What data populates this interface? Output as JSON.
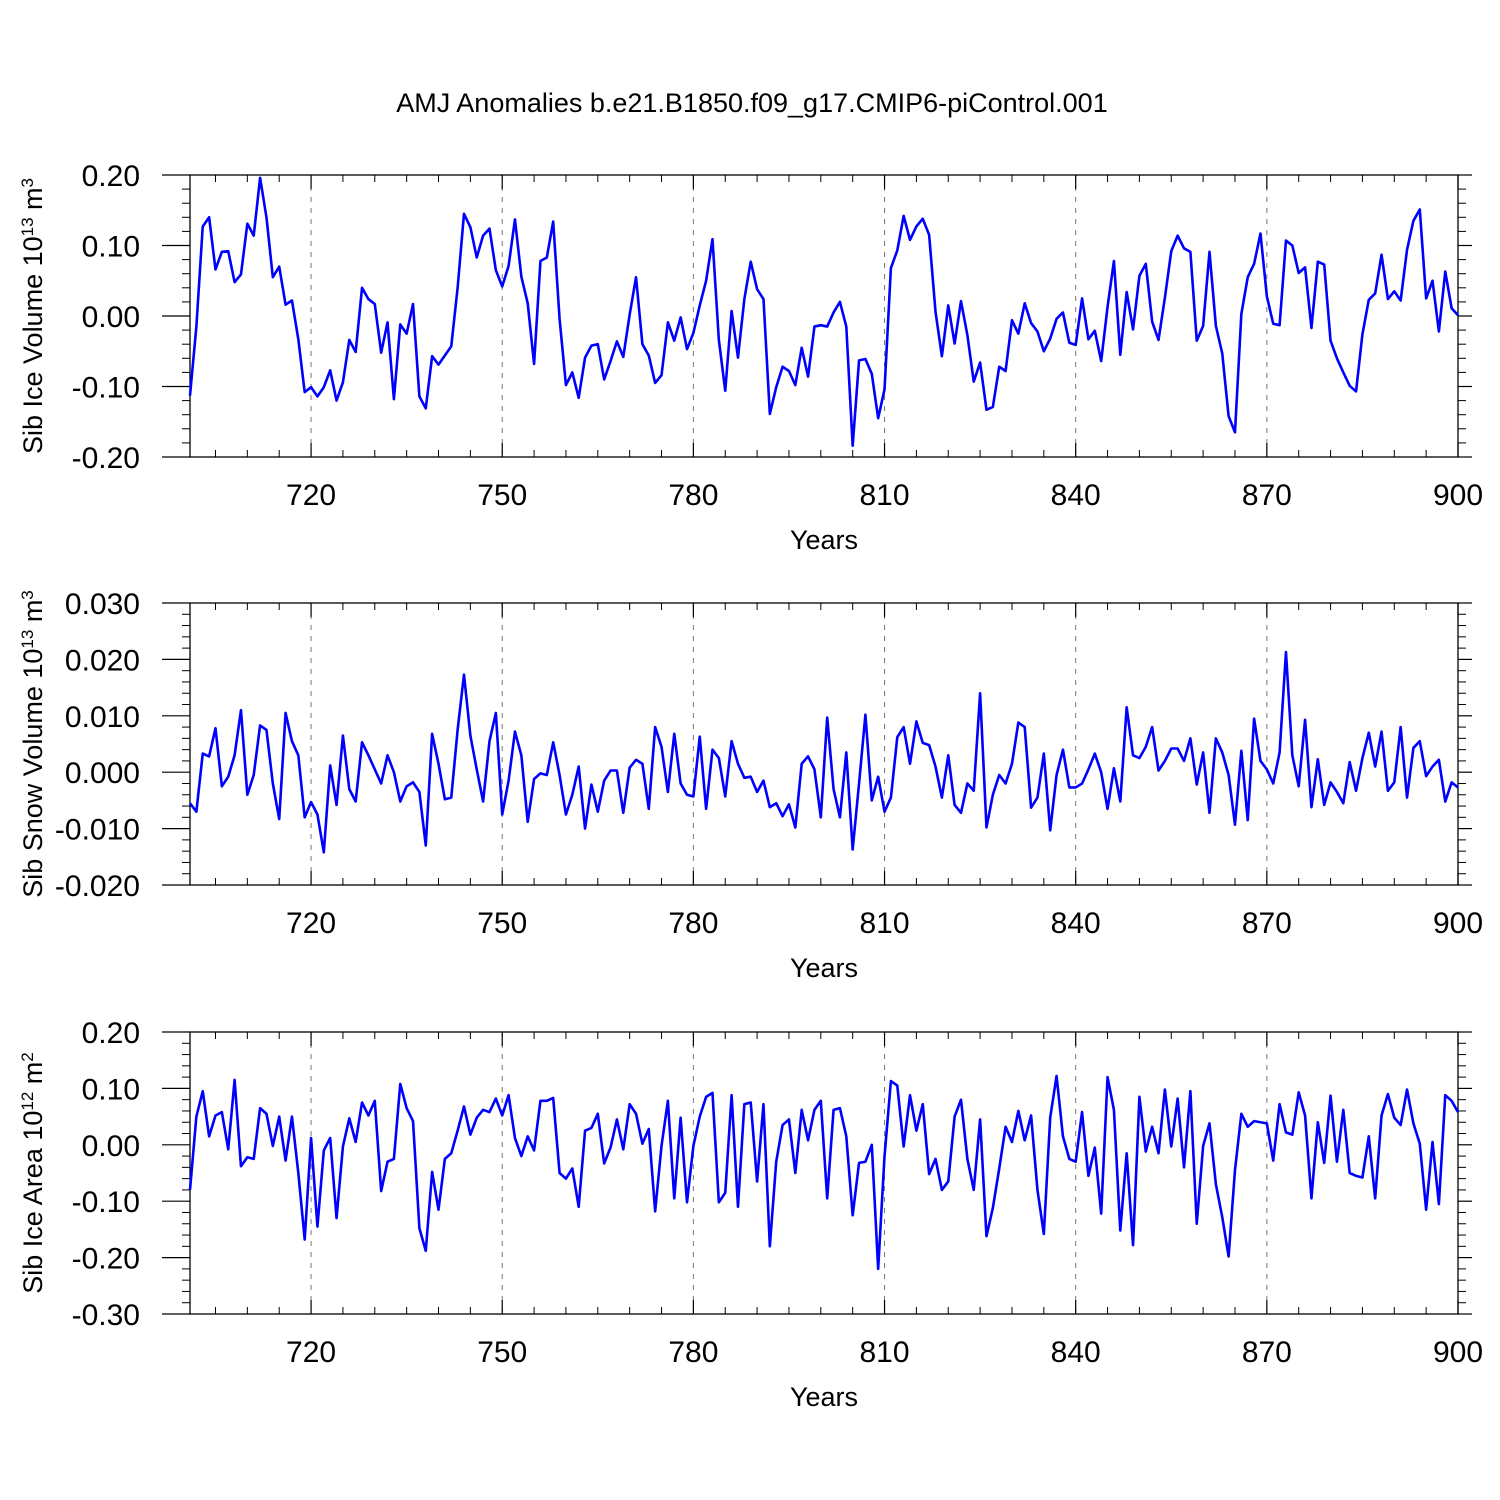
{
  "title": "AMJ Anomalies b.e21.B1850.f09_g17.CMIP6-piControl.001",
  "line_color": "#0000ff",
  "chart_data": [
    {
      "type": "line",
      "ylabel_main": "Sib Ice Volume 10",
      "ylabel_exp": "13",
      "ylabel_unit": " m",
      "ylabel_unit_exp": "3",
      "xlabel": "Years",
      "xlim": [
        701,
        900
      ],
      "ylim": [
        -0.2,
        0.2
      ],
      "x_ticks": [
        "720",
        "750",
        "780",
        "810",
        "840",
        "870",
        "900"
      ],
      "y_ticks": [
        "-0.20",
        "-0.10",
        "0.00",
        "0.10",
        "0.20"
      ],
      "x_start": 701,
      "values": [
        -0.113,
        -0.015,
        0.127,
        0.14,
        0.066,
        0.091,
        0.092,
        0.048,
        0.059,
        0.131,
        0.114,
        0.196,
        0.14,
        0.055,
        0.07,
        0.016,
        0.022,
        -0.033,
        -0.108,
        -0.101,
        -0.114,
        -0.101,
        -0.077,
        -0.12,
        -0.094,
        -0.034,
        -0.051,
        0.04,
        0.024,
        0.017,
        -0.052,
        -0.009,
        -0.118,
        -0.012,
        -0.025,
        0.017,
        -0.114,
        -0.131,
        -0.057,
        -0.069,
        -0.056,
        -0.043,
        0.04,
        0.145,
        0.126,
        0.083,
        0.114,
        0.124,
        0.065,
        0.042,
        0.071,
        0.137,
        0.056,
        0.018,
        -0.068,
        0.078,
        0.083,
        0.134,
        -0.004,
        -0.098,
        -0.08,
        -0.116,
        -0.059,
        -0.042,
        -0.04,
        -0.09,
        -0.064,
        -0.036,
        -0.058,
        0.002,
        0.055,
        -0.04,
        -0.056,
        -0.095,
        -0.084,
        -0.009,
        -0.035,
        -0.002,
        -0.047,
        -0.024,
        0.015,
        0.05,
        0.109,
        -0.034,
        -0.106,
        0.007,
        -0.059,
        0.024,
        0.077,
        0.038,
        0.024,
        -0.139,
        -0.101,
        -0.072,
        -0.078,
        -0.098,
        -0.045,
        -0.086,
        -0.015,
        -0.013,
        -0.015,
        0.005,
        0.02,
        -0.015,
        -0.184,
        -0.063,
        -0.061,
        -0.082,
        -0.145,
        -0.104,
        0.068,
        0.093,
        0.142,
        0.108,
        0.127,
        0.138,
        0.115,
        0.006,
        -0.057,
        0.015,
        -0.039,
        0.021,
        -0.027,
        -0.093,
        -0.066,
        -0.133,
        -0.129,
        -0.072,
        -0.078,
        -0.006,
        -0.025,
        0.018,
        -0.01,
        -0.022,
        -0.05,
        -0.032,
        -0.004,
        0.005,
        -0.038,
        -0.041,
        0.025,
        -0.033,
        -0.021,
        -0.064,
        0.013,
        0.078,
        -0.055,
        0.034,
        -0.019,
        0.057,
        0.074,
        -0.008,
        -0.034,
        0.026,
        0.092,
        0.114,
        0.096,
        0.091,
        -0.035,
        -0.014,
        0.091,
        -0.014,
        -0.053,
        -0.142,
        -0.165,
        0.003,
        0.055,
        0.074,
        0.117,
        0.028,
        -0.011,
        -0.013,
        0.107,
        0.1,
        0.061,
        0.069,
        -0.017,
        0.077,
        0.073,
        -0.035,
        -0.06,
        -0.08,
        -0.099,
        -0.107,
        -0.026,
        0.023,
        0.032,
        0.087,
        0.024,
        0.035,
        0.022,
        0.094,
        0.135,
        0.151,
        0.025,
        0.05,
        -0.022,
        0.063,
        0.011,
        0.001
      ]
    },
    {
      "type": "line",
      "ylabel_main": "Sib Snow Volume 10",
      "ylabel_exp": "13",
      "ylabel_unit": " m",
      "ylabel_unit_exp": "3",
      "xlabel": "Years",
      "xlim": [
        701,
        900
      ],
      "ylim": [
        -0.02,
        0.03
      ],
      "x_ticks": [
        "720",
        "750",
        "780",
        "810",
        "840",
        "870",
        "900"
      ],
      "y_ticks": [
        "-0.020",
        "-0.010",
        "0.000",
        "0.010",
        "0.020",
        "0.030"
      ],
      "x_start": 701,
      "values": [
        -0.0055,
        -0.007,
        0.0033,
        0.0028,
        0.0078,
        -0.0025,
        -0.0008,
        0.003,
        0.011,
        -0.004,
        -0.0005,
        0.0083,
        0.0075,
        -0.002,
        -0.0083,
        0.0105,
        0.0055,
        0.003,
        -0.008,
        -0.0053,
        -0.0075,
        -0.0142,
        0.0012,
        -0.0058,
        0.0065,
        -0.003,
        -0.0052,
        0.0053,
        0.003,
        0.0005,
        -0.002,
        0.003,
        0.0,
        -0.0052,
        -0.0025,
        -0.0018,
        -0.0035,
        -0.013,
        0.0068,
        0.0015,
        -0.0048,
        -0.0045,
        0.0075,
        0.0173,
        0.0065,
        0.0005,
        -0.0052,
        0.0055,
        0.0105,
        -0.0075,
        -0.0015,
        0.0072,
        0.003,
        -0.0088,
        -0.0012,
        -0.0002,
        -0.0005,
        0.0053,
        -0.0005,
        -0.0075,
        -0.004,
        0.001,
        -0.01,
        -0.0022,
        -0.007,
        -0.0015,
        0.0003,
        0.0003,
        -0.0072,
        0.0008,
        0.0022,
        0.0015,
        -0.0065,
        0.008,
        0.0045,
        -0.0035,
        0.0068,
        -0.002,
        -0.004,
        -0.0043,
        0.0063,
        -0.0065,
        0.004,
        0.0025,
        -0.0043,
        0.0055,
        0.0015,
        -0.001,
        -0.0008,
        -0.0035,
        -0.0015,
        -0.0062,
        -0.0055,
        -0.0078,
        -0.0057,
        -0.0098,
        0.0015,
        0.0028,
        0.0005,
        -0.008,
        0.0097,
        -0.003,
        -0.008,
        0.0035,
        -0.0137,
        -0.002,
        0.0102,
        -0.005,
        -0.0008,
        -0.007,
        -0.0045,
        0.0062,
        0.008,
        0.0015,
        0.009,
        0.0052,
        0.0048,
        0.001,
        -0.0045,
        0.003,
        -0.0058,
        -0.0072,
        -0.002,
        -0.0033,
        0.014,
        -0.0098,
        -0.004,
        -0.0005,
        -0.002,
        0.0015,
        0.0088,
        0.008,
        -0.0063,
        -0.0045,
        0.0033,
        -0.0103,
        -0.0005,
        0.004,
        -0.0027,
        -0.0027,
        -0.002,
        0.0005,
        0.0033,
        0.0,
        -0.0065,
        0.0007,
        -0.0052,
        0.0115,
        0.003,
        0.0025,
        0.0045,
        0.008,
        0.0003,
        0.002,
        0.0042,
        0.0042,
        0.002,
        0.006,
        -0.0022,
        0.0035,
        -0.0072,
        0.006,
        0.0035,
        -0.0005,
        -0.0093,
        0.0038,
        -0.0085,
        0.0095,
        0.002,
        0.0005,
        -0.002,
        0.0035,
        0.0213,
        0.003,
        -0.0025,
        0.0093,
        -0.0062,
        0.0023,
        -0.0058,
        -0.0018,
        -0.0035,
        -0.0055,
        0.0018,
        -0.0033,
        0.0025,
        0.007,
        0.001,
        0.0072,
        -0.0033,
        -0.0018,
        0.008,
        -0.0045,
        0.0043,
        0.0055,
        -0.0007,
        0.001,
        0.0022,
        -0.0052,
        -0.0018,
        -0.0027
      ]
    },
    {
      "type": "line",
      "ylabel_main": "Sib Ice Area 10",
      "ylabel_exp": "12",
      "ylabel_unit": " m",
      "ylabel_unit_exp": "2",
      "xlabel": "Years",
      "xlim": [
        701,
        900
      ],
      "ylim": [
        -0.3,
        0.2
      ],
      "x_ticks": [
        "720",
        "750",
        "780",
        "810",
        "840",
        "870",
        "900"
      ],
      "y_ticks": [
        "-0.30",
        "-0.20",
        "-0.10",
        "0.00",
        "0.10",
        "0.20"
      ],
      "x_start": 701,
      "values": [
        -0.08,
        0.05,
        0.095,
        0.015,
        0.052,
        0.058,
        -0.008,
        0.115,
        -0.038,
        -0.022,
        -0.025,
        0.065,
        0.055,
        -0.002,
        0.05,
        -0.028,
        0.05,
        -0.05,
        -0.168,
        0.012,
        -0.145,
        -0.01,
        0.012,
        -0.13,
        -0.003,
        0.047,
        0.005,
        0.075,
        0.052,
        0.078,
        -0.082,
        -0.03,
        -0.025,
        0.108,
        0.065,
        0.042,
        -0.148,
        -0.188,
        -0.048,
        -0.115,
        -0.025,
        -0.015,
        0.025,
        0.068,
        0.018,
        0.048,
        0.062,
        0.058,
        0.082,
        0.052,
        0.088,
        0.012,
        -0.02,
        0.015,
        -0.01,
        0.078,
        0.078,
        0.083,
        -0.05,
        -0.06,
        -0.042,
        -0.11,
        0.025,
        0.03,
        0.055,
        -0.033,
        -0.005,
        0.045,
        -0.008,
        0.072,
        0.055,
        0.002,
        0.028,
        -0.118,
        -0.002,
        0.078,
        -0.095,
        0.048,
        -0.102,
        -0.002,
        0.05,
        0.085,
        0.092,
        -0.102,
        -0.085,
        0.088,
        -0.11,
        0.072,
        0.075,
        -0.065,
        0.072,
        -0.18,
        -0.03,
        0.035,
        0.045,
        -0.05,
        0.062,
        0.008,
        0.062,
        0.078,
        -0.095,
        0.062,
        0.065,
        0.015,
        -0.125,
        -0.032,
        -0.03,
        0.0,
        -0.22,
        -0.02,
        0.113,
        0.105,
        -0.003,
        0.088,
        0.025,
        0.072,
        -0.052,
        -0.025,
        -0.08,
        -0.065,
        0.05,
        0.08,
        -0.025,
        -0.08,
        0.045,
        -0.162,
        -0.112,
        -0.042,
        0.032,
        0.005,
        0.06,
        0.008,
        0.052,
        -0.08,
        -0.158,
        0.048,
        0.122,
        0.015,
        -0.025,
        -0.03,
        0.058,
        -0.055,
        -0.005,
        -0.122,
        0.12,
        0.062,
        -0.152,
        -0.015,
        -0.178,
        0.085,
        -0.012,
        0.032,
        -0.015,
        0.098,
        -0.003,
        0.082,
        -0.04,
        0.095,
        -0.14,
        -0.002,
        0.038,
        -0.07,
        -0.128,
        -0.198,
        -0.045,
        0.055,
        0.032,
        0.042,
        0.04,
        0.038,
        -0.028,
        0.072,
        0.022,
        0.018,
        0.093,
        0.052,
        -0.095,
        0.04,
        -0.032,
        0.087,
        -0.03,
        0.062,
        -0.05,
        -0.055,
        -0.058,
        0.015,
        -0.095,
        0.052,
        0.09,
        0.048,
        0.035,
        0.098,
        0.038,
        0.002,
        -0.115,
        0.005,
        -0.105,
        0.088,
        0.078,
        0.058
      ]
    }
  ]
}
